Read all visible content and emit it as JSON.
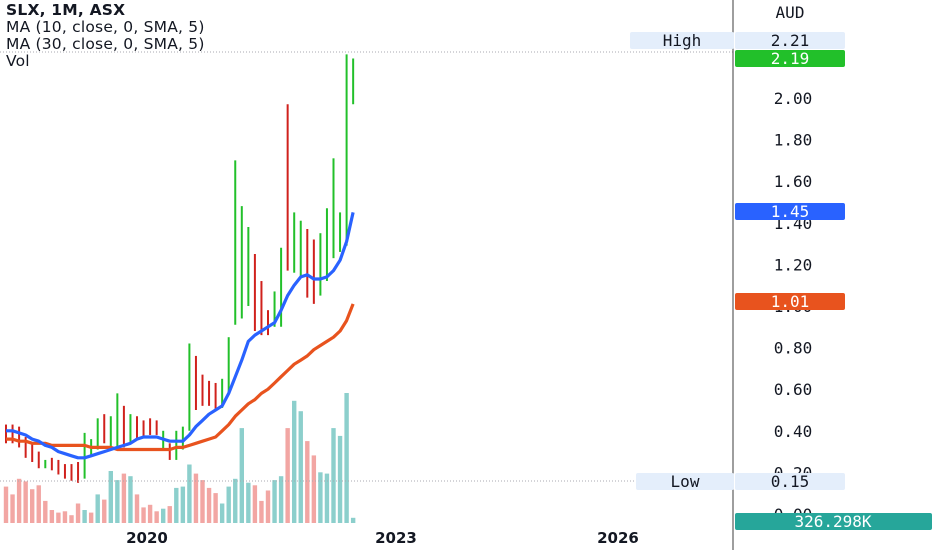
{
  "legend": {
    "symbol": "SLX, 1M, ASX",
    "ma1": "MA (10, close, 0, SMA, 5)",
    "ma2": "MA (30, close, 0, SMA, 5)",
    "vol": "Vol"
  },
  "colors": {
    "up": "#22c02a",
    "down": "#d0211c",
    "ma10": "#2962ff",
    "ma30": "#e8531e",
    "vol_up": "#8ccfcc",
    "vol_down": "#f2a6a3",
    "high_low_label_bg": "#e4eefb",
    "volume_label_bg": "#26a69a"
  },
  "chart_data": {
    "type": "ohlc",
    "currency": "AUD",
    "y_ticks": [
      "0.00",
      "0.20",
      "0.40",
      "0.60",
      "0.80",
      "1.00",
      "1.20",
      "1.40",
      "1.60",
      "1.80",
      "2.00"
    ],
    "x_ticks": [
      "2020",
      "2023",
      "2026"
    ],
    "ylim": [
      0.0,
      2.25
    ],
    "high_label": "High",
    "high_value": "2.21",
    "low_label": "Low",
    "low_value": "0.15",
    "last_price": "2.19",
    "ma10_value": "1.45",
    "ma30_value": "1.01",
    "volume_value": "326.298K",
    "bars": [
      {
        "h": 0.43,
        "l": 0.34,
        "up": false
      },
      {
        "h": 0.43,
        "l": 0.34,
        "up": false
      },
      {
        "h": 0.42,
        "l": 0.32,
        "up": false
      },
      {
        "h": 0.37,
        "l": 0.27,
        "up": false
      },
      {
        "h": 0.34,
        "l": 0.25,
        "up": false
      },
      {
        "h": 0.3,
        "l": 0.22,
        "up": false
      },
      {
        "h": 0.26,
        "l": 0.22,
        "up": true
      },
      {
        "h": 0.27,
        "l": 0.21,
        "up": false
      },
      {
        "h": 0.26,
        "l": 0.19,
        "up": false
      },
      {
        "h": 0.24,
        "l": 0.17,
        "up": false
      },
      {
        "h": 0.24,
        "l": 0.16,
        "up": false
      },
      {
        "h": 0.25,
        "l": 0.15,
        "up": false
      },
      {
        "h": 0.39,
        "l": 0.17,
        "up": true
      },
      {
        "h": 0.36,
        "l": 0.28,
        "up": true
      },
      {
        "h": 0.46,
        "l": 0.31,
        "up": true
      },
      {
        "h": 0.48,
        "l": 0.34,
        "up": false
      },
      {
        "h": 0.47,
        "l": 0.32,
        "up": true
      },
      {
        "h": 0.58,
        "l": 0.31,
        "up": true
      },
      {
        "h": 0.52,
        "l": 0.32,
        "up": false
      },
      {
        "h": 0.48,
        "l": 0.34,
        "up": true
      },
      {
        "h": 0.47,
        "l": 0.36,
        "up": false
      },
      {
        "h": 0.45,
        "l": 0.37,
        "up": false
      },
      {
        "h": 0.46,
        "l": 0.38,
        "up": false
      },
      {
        "h": 0.45,
        "l": 0.38,
        "up": false
      },
      {
        "h": 0.4,
        "l": 0.31,
        "up": true
      },
      {
        "h": 0.34,
        "l": 0.26,
        "up": false
      },
      {
        "h": 0.4,
        "l": 0.26,
        "up": true
      },
      {
        "h": 0.42,
        "l": 0.31,
        "up": true
      },
      {
        "h": 0.82,
        "l": 0.4,
        "up": true
      },
      {
        "h": 0.76,
        "l": 0.5,
        "up": false
      },
      {
        "h": 0.67,
        "l": 0.52,
        "up": false
      },
      {
        "h": 0.64,
        "l": 0.52,
        "up": false
      },
      {
        "h": 0.63,
        "l": 0.5,
        "up": false
      },
      {
        "h": 0.65,
        "l": 0.51,
        "up": true
      },
      {
        "h": 0.85,
        "l": 0.58,
        "up": true
      },
      {
        "h": 1.7,
        "l": 0.91,
        "up": true
      },
      {
        "h": 1.48,
        "l": 0.94,
        "up": true
      },
      {
        "h": 1.38,
        "l": 1.0,
        "up": true
      },
      {
        "h": 1.25,
        "l": 0.88,
        "up": false
      },
      {
        "h": 1.12,
        "l": 0.86,
        "up": false
      },
      {
        "h": 0.98,
        "l": 0.86,
        "up": false
      },
      {
        "h": 1.07,
        "l": 0.9,
        "up": true
      },
      {
        "h": 1.28,
        "l": 0.9,
        "up": true
      },
      {
        "h": 1.97,
        "l": 1.17,
        "up": false
      },
      {
        "h": 1.45,
        "l": 1.16,
        "up": true
      },
      {
        "h": 1.41,
        "l": 1.14,
        "up": true
      },
      {
        "h": 1.37,
        "l": 1.04,
        "up": false
      },
      {
        "h": 1.32,
        "l": 1.01,
        "up": false
      },
      {
        "h": 1.35,
        "l": 1.05,
        "up": true
      },
      {
        "h": 1.47,
        "l": 1.12,
        "up": true
      },
      {
        "h": 1.71,
        "l": 1.23,
        "up": true
      },
      {
        "h": 1.45,
        "l": 1.26,
        "up": true
      },
      {
        "h": 2.21,
        "l": 1.29,
        "up": true
      },
      {
        "h": 2.19,
        "l": 1.97,
        "up": true
      }
    ],
    "ma10": [
      0.4,
      0.4,
      0.39,
      0.38,
      0.36,
      0.35,
      0.33,
      0.32,
      0.3,
      0.29,
      0.28,
      0.27,
      0.27,
      0.28,
      0.29,
      0.3,
      0.31,
      0.32,
      0.33,
      0.34,
      0.36,
      0.37,
      0.37,
      0.37,
      0.36,
      0.35,
      0.35,
      0.35,
      0.38,
      0.42,
      0.45,
      0.48,
      0.5,
      0.52,
      0.58,
      0.66,
      0.74,
      0.83,
      0.86,
      0.88,
      0.9,
      0.92,
      0.98,
      1.05,
      1.1,
      1.14,
      1.15,
      1.13,
      1.13,
      1.14,
      1.17,
      1.22,
      1.31,
      1.45
    ],
    "ma30": [
      0.36,
      0.36,
      0.35,
      0.35,
      0.34,
      0.34,
      0.34,
      0.33,
      0.33,
      0.33,
      0.33,
      0.33,
      0.33,
      0.32,
      0.32,
      0.32,
      0.32,
      0.31,
      0.31,
      0.31,
      0.31,
      0.31,
      0.31,
      0.31,
      0.31,
      0.31,
      0.32,
      0.32,
      0.33,
      0.34,
      0.35,
      0.36,
      0.37,
      0.4,
      0.43,
      0.47,
      0.5,
      0.53,
      0.55,
      0.58,
      0.6,
      0.63,
      0.66,
      0.69,
      0.72,
      0.74,
      0.76,
      0.79,
      0.81,
      0.83,
      0.85,
      0.88,
      0.93,
      1.01
    ],
    "volume_rel": [
      0.28,
      0.22,
      0.34,
      0.32,
      0.26,
      0.29,
      0.17,
      0.1,
      0.08,
      0.09,
      0.06,
      0.15,
      0.1,
      0.08,
      0.22,
      0.18,
      0.4,
      0.33,
      0.38,
      0.36,
      0.22,
      0.12,
      0.14,
      0.09,
      0.11,
      0.13,
      0.27,
      0.28,
      0.45,
      0.38,
      0.33,
      0.27,
      0.23,
      0.15,
      0.28,
      0.34,
      0.73,
      0.31,
      0.29,
      0.17,
      0.25,
      0.33,
      0.36,
      0.73,
      0.94,
      0.86,
      0.63,
      0.52,
      0.39,
      0.38,
      0.73,
      0.67,
      1.0,
      0.04
    ],
    "volume_colors": [
      "d",
      "d",
      "d",
      "d",
      "d",
      "d",
      "d",
      "d",
      "d",
      "d",
      "d",
      "d",
      "u",
      "d",
      "u",
      "d",
      "u",
      "u",
      "d",
      "u",
      "d",
      "d",
      "d",
      "d",
      "u",
      "d",
      "u",
      "u",
      "u",
      "d",
      "d",
      "d",
      "d",
      "u",
      "u",
      "u",
      "u",
      "u",
      "d",
      "d",
      "d",
      "u",
      "u",
      "d",
      "u",
      "u",
      "d",
      "d",
      "u",
      "u",
      "u",
      "u",
      "u",
      "u"
    ]
  }
}
